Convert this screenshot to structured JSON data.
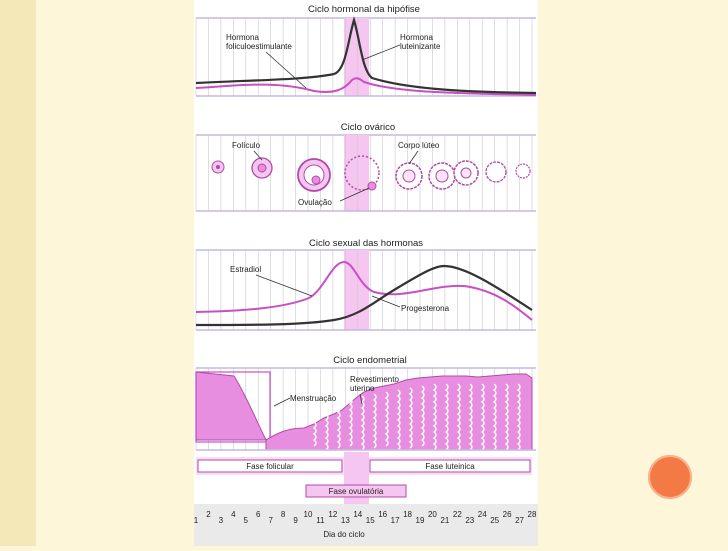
{
  "colors": {
    "pink": "#c94fc4",
    "dark": "#333333",
    "band": "#f5c6ef",
    "tissue": "#e88ee0",
    "accent_circle": "#f47a45"
  },
  "sections": {
    "hormonal": {
      "title": "Ciclo hormonal da hipófise",
      "fsh_label_1": "Hormona",
      "fsh_label_2": "foliculoestimulante",
      "lh_label_1": "Hormona",
      "lh_label_2": "luteinizante"
    },
    "ovarian": {
      "title": "Ciclo ovárico",
      "follicle_label": "Folículo",
      "corpus_label": "Corpo lúteo",
      "ovulation_label": "Ovulação"
    },
    "sexual": {
      "title": "Ciclo sexual das hormonas",
      "estradiol_label": "Estradiol",
      "progesterone_label": "Progesterona"
    },
    "endometrial": {
      "title": "Ciclo endometrial",
      "lining_label_1": "Revestimento",
      "lining_label_2": "uterino",
      "menstruation_label": "Menstruação"
    }
  },
  "phases": {
    "follicular": "Fase folicular",
    "luteal": "Fase lutei­nica",
    "ovulatory": "Fase ovulatória"
  },
  "axis": {
    "label": "Dia do ciclo",
    "days": [
      "1",
      "2",
      "3",
      "4",
      "5",
      "6",
      "7",
      "8",
      "9",
      "10",
      "11",
      "12",
      "13",
      "14",
      "15",
      "16",
      "17",
      "18",
      "19",
      "20",
      "21",
      "22",
      "23",
      "24",
      "25",
      "26",
      "27",
      "28"
    ]
  }
}
